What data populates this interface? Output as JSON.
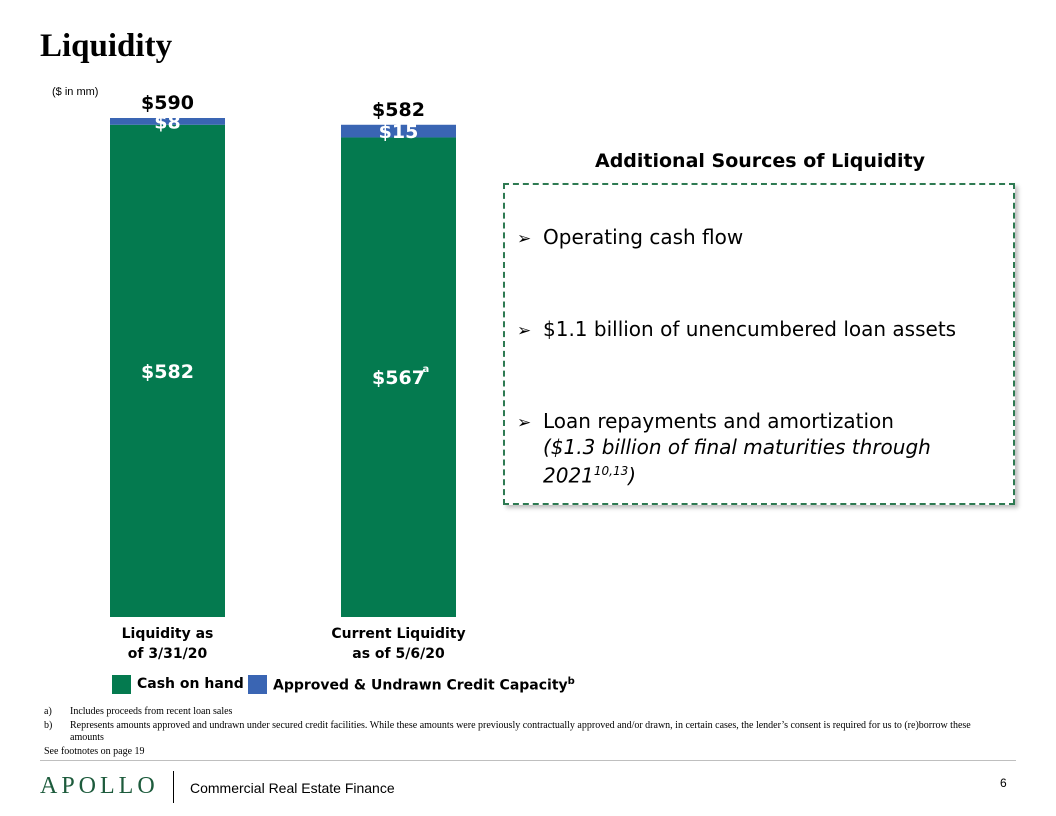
{
  "page": {
    "title": "Liquidity",
    "units_note": "($ in mm)"
  },
  "chart_data": {
    "type": "bar",
    "stacked": true,
    "categories": [
      "Liquidity as of 3/31/20",
      "Current Liquidity as of 5/6/20"
    ],
    "category_lines": [
      [
        "Liquidity as",
        "of 3/31/20"
      ],
      [
        "Current Liquidity",
        "as of 5/6/20"
      ]
    ],
    "series": [
      {
        "name": "Cash on hand",
        "values": [
          582,
          567
        ],
        "labels": [
          "$582",
          "$567"
        ],
        "label_notes": [
          "",
          "a"
        ],
        "color": "#047a4f"
      },
      {
        "name": "Approved & Undrawn Credit Capacity",
        "values": [
          8,
          15
        ],
        "labels": [
          "$8",
          "$15"
        ],
        "label_notes": [
          "",
          ""
        ],
        "color": "#3a65b3"
      }
    ],
    "totals": [
      590,
      582
    ],
    "total_labels": [
      "$590",
      "$582"
    ],
    "legend_note": "b",
    "legend_position": "bottom"
  },
  "panel": {
    "title": "Additional Sources of Liquidity",
    "bullets": [
      {
        "text": "Operating cash flow"
      },
      {
        "text": "$1.1 billion of unencumbered loan assets"
      },
      {
        "text": "Loan repayments and amortization",
        "sub_open": "($1.3 billion of final maturities through 2021",
        "sub_sup": "10,13",
        "sub_close": ")"
      }
    ],
    "border_color": "#2e7a52"
  },
  "footnotes": [
    {
      "marker": "a)",
      "text": "Includes proceeds from recent loan sales"
    },
    {
      "marker": "b)",
      "text": "Represents amounts approved and undrawn under secured credit facilities. While these amounts were previously contractually approved and/or drawn, in certain cases, the lender’s consent is required for us to (re)borrow these amounts"
    }
  ],
  "see_footnotes": "See footnotes on page 19",
  "footer": {
    "logo": "APOLLO",
    "division": "Commercial Real Estate Finance",
    "page_number": "6"
  }
}
